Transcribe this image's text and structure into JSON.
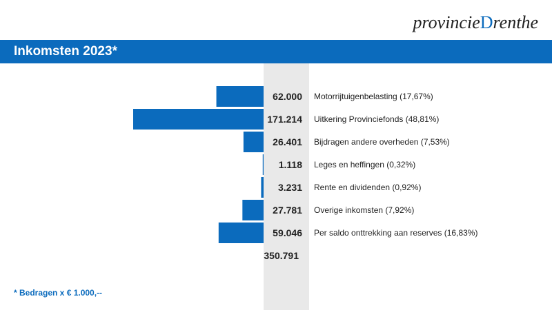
{
  "logo": {
    "text_before": "provincie",
    "text_accent": "D",
    "text_after": "renthe"
  },
  "header": {
    "title": "Inkomsten 2023*"
  },
  "footnote": "* Bedragen x € 1.000,--",
  "colors": {
    "accent": "#0b6bbd",
    "column_bg": "#e9e9e9",
    "text": "#222222"
  },
  "chart_data": {
    "type": "bar",
    "orientation": "horizontal",
    "categories": [
      "Motorrijtuigenbelasting (17,67%)",
      "Uitkering Provinciefonds (48,81%)",
      "Bijdragen andere overheden (7,53%)",
      "Leges en heffingen (0,32%)",
      "Rente en dividenden (0,92%)",
      "Overige inkomsten (7,92%)",
      "Per saldo onttrekking aan reserves (16,83%)"
    ],
    "values": [
      62000,
      171214,
      26401,
      1118,
      3231,
      27781,
      59046
    ],
    "value_labels": [
      "62.000",
      "171.214",
      "26.401",
      "1.118",
      "3.231",
      "27.781",
      "59.046"
    ],
    "total_label": "350.791"
  }
}
